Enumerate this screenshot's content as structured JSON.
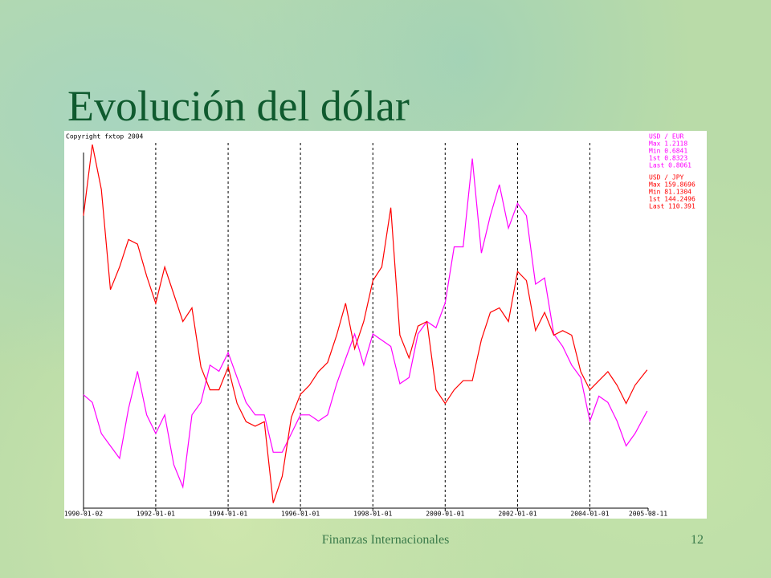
{
  "slide": {
    "title": "Evolución del dólar",
    "footer": "Finanzas Internacionales",
    "page_number": "12"
  },
  "chart_data": {
    "type": "line",
    "copyright": "Copyright fxtop 2004",
    "x": [
      "1990-01",
      "1990-04",
      "1990-07",
      "1990-10",
      "1991-01",
      "1991-04",
      "1991-07",
      "1991-10",
      "1992-01",
      "1992-04",
      "1992-07",
      "1992-10",
      "1993-01",
      "1993-04",
      "1993-07",
      "1993-10",
      "1994-01",
      "1994-04",
      "1994-07",
      "1994-10",
      "1995-01",
      "1995-04",
      "1995-07",
      "1995-10",
      "1996-01",
      "1996-04",
      "1996-07",
      "1996-10",
      "1997-01",
      "1997-04",
      "1997-07",
      "1997-10",
      "1998-01",
      "1998-04",
      "1998-07",
      "1998-10",
      "1999-01",
      "1999-04",
      "1999-07",
      "1999-10",
      "2000-01",
      "2000-04",
      "2000-07",
      "2000-10",
      "2001-01",
      "2001-04",
      "2001-07",
      "2001-10",
      "2002-01",
      "2002-04",
      "2002-07",
      "2002-10",
      "2003-01",
      "2003-04",
      "2003-07",
      "2003-10",
      "2004-01",
      "2004-04",
      "2004-07",
      "2004-10",
      "2005-01",
      "2005-04",
      "2005-08"
    ],
    "xlim": [
      "1990-01-02",
      "2005-08-11"
    ],
    "xticks": [
      "1990-01-02",
      "1992-01-01",
      "1994-01-01",
      "1996-01-01",
      "1998-01-01",
      "2000-01-01",
      "2002-01-01",
      "2004-01-01",
      "2005-08-11"
    ],
    "ylim": [
      80,
      162
    ],
    "y2lim": [
      0.65,
      1.25
    ],
    "grid": true,
    "series": [
      {
        "name": "USD / EUR",
        "color": "#ff00ff",
        "axis": "y2",
        "stats": [
          "Max 1.2118",
          "Min 0.6841",
          "1st 0.8323",
          "Last 0.8061"
        ],
        "values": [
          0.8323,
          0.82,
          0.77,
          0.75,
          0.73,
          0.81,
          0.87,
          0.8,
          0.77,
          0.8,
          0.72,
          0.6841,
          0.8,
          0.82,
          0.88,
          0.87,
          0.9,
          0.86,
          0.82,
          0.8,
          0.8,
          0.74,
          0.74,
          0.77,
          0.8,
          0.8,
          0.79,
          0.8,
          0.85,
          0.89,
          0.93,
          0.88,
          0.93,
          0.92,
          0.91,
          0.85,
          0.86,
          0.93,
          0.95,
          0.94,
          0.98,
          1.07,
          1.07,
          1.2118,
          1.06,
          1.12,
          1.17,
          1.1,
          1.14,
          1.12,
          1.01,
          1.02,
          0.93,
          0.91,
          0.88,
          0.86,
          0.79,
          0.83,
          0.82,
          0.79,
          0.75,
          0.77,
          0.8061
        ]
      },
      {
        "name": "USD / JPY",
        "color": "#ff0000",
        "stats": [
          "Max 159.8696",
          "Min 81.1304",
          "1st 144.2496",
          "Last 110.391"
        ],
        "values": [
          144.2496,
          159.8696,
          150,
          128,
          133,
          139,
          138,
          131,
          125,
          133,
          127,
          121,
          124,
          111,
          106,
          106,
          111,
          103,
          99,
          98,
          99,
          81.1304,
          87,
          100,
          105,
          107,
          110,
          112,
          118,
          125,
          115,
          121,
          130,
          133,
          146,
          118,
          113,
          120,
          121,
          106,
          103,
          106,
          108,
          108,
          117,
          123,
          124,
          121,
          132,
          130,
          119,
          123,
          118,
          119,
          118,
          110,
          106,
          108,
          110,
          107,
          103,
          107,
          110.391
        ]
      }
    ]
  }
}
